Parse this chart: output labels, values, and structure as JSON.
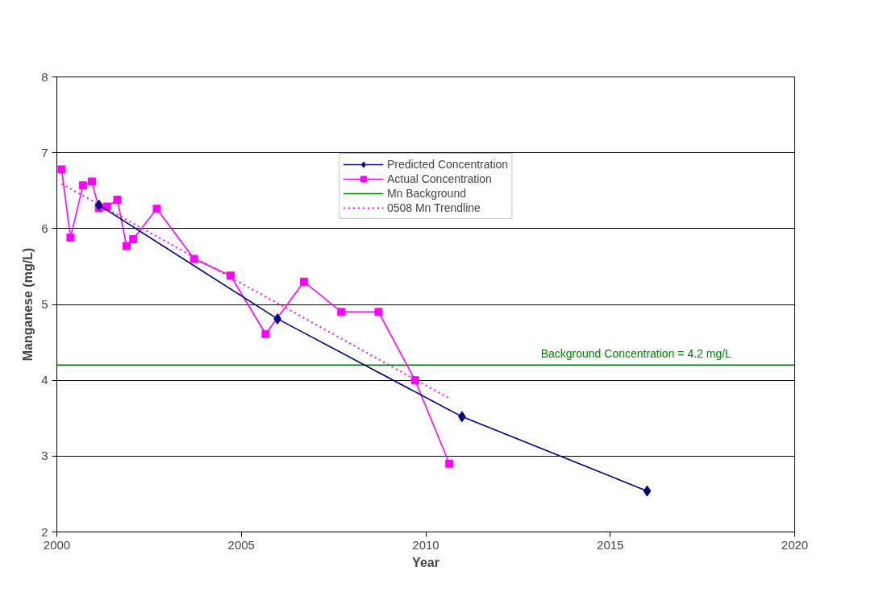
{
  "chart_data": {
    "type": "line",
    "xlabel": "Year",
    "ylabel": "Manganese (mg/L)",
    "xlim": [
      2000,
      2020
    ],
    "xticks": [
      2000,
      2005,
      2010,
      2015,
      2020
    ],
    "ylim": [
      2,
      8
    ],
    "yticks": [
      2,
      3,
      4,
      5,
      6,
      7,
      8
    ],
    "grid": "y",
    "legend": "top",
    "line_style": "solid",
    "series": [
      {
        "name": "Predicted Concentration",
        "color": "#000080",
        "marker": "diamond",
        "x": [
          2001.14,
          2005.98,
          2010.98,
          2016.0
        ],
        "values": [
          6.31,
          4.81,
          3.52,
          2.54
        ]
      },
      {
        "name": "Actual Concentration",
        "color": "#ff00ff",
        "marker": "square",
        "x": [
          2000.13,
          2000.37,
          2000.71,
          2000.95,
          2001.14,
          2001.36,
          2001.64,
          2001.89,
          2002.07,
          2002.71,
          2003.72,
          2004.71,
          2005.66,
          2006.7,
          2007.71,
          2008.72,
          2009.71,
          2010.64
        ],
        "values": [
          6.78,
          5.88,
          6.57,
          6.62,
          6.27,
          6.29,
          6.38,
          5.77,
          5.86,
          6.26,
          5.6,
          5.38,
          4.61,
          5.3,
          4.9,
          4.9,
          4.0,
          2.9
        ]
      },
      {
        "name": "Mn Background",
        "color": "#008000",
        "marker": "none",
        "x": [
          2000,
          2020
        ],
        "values": [
          4.2,
          4.2
        ]
      },
      {
        "name": "0508 Mn Trendline",
        "color": "#ff00ff",
        "marker": "none",
        "line_style": "dotted",
        "x": [
          2000.13,
          2010.64
        ],
        "values": [
          6.59,
          3.76
        ]
      }
    ],
    "annotations": [
      {
        "text": "Background Concentration = 4.2 mg/L",
        "x": 2015.7,
        "y": 4.2
      }
    ]
  }
}
